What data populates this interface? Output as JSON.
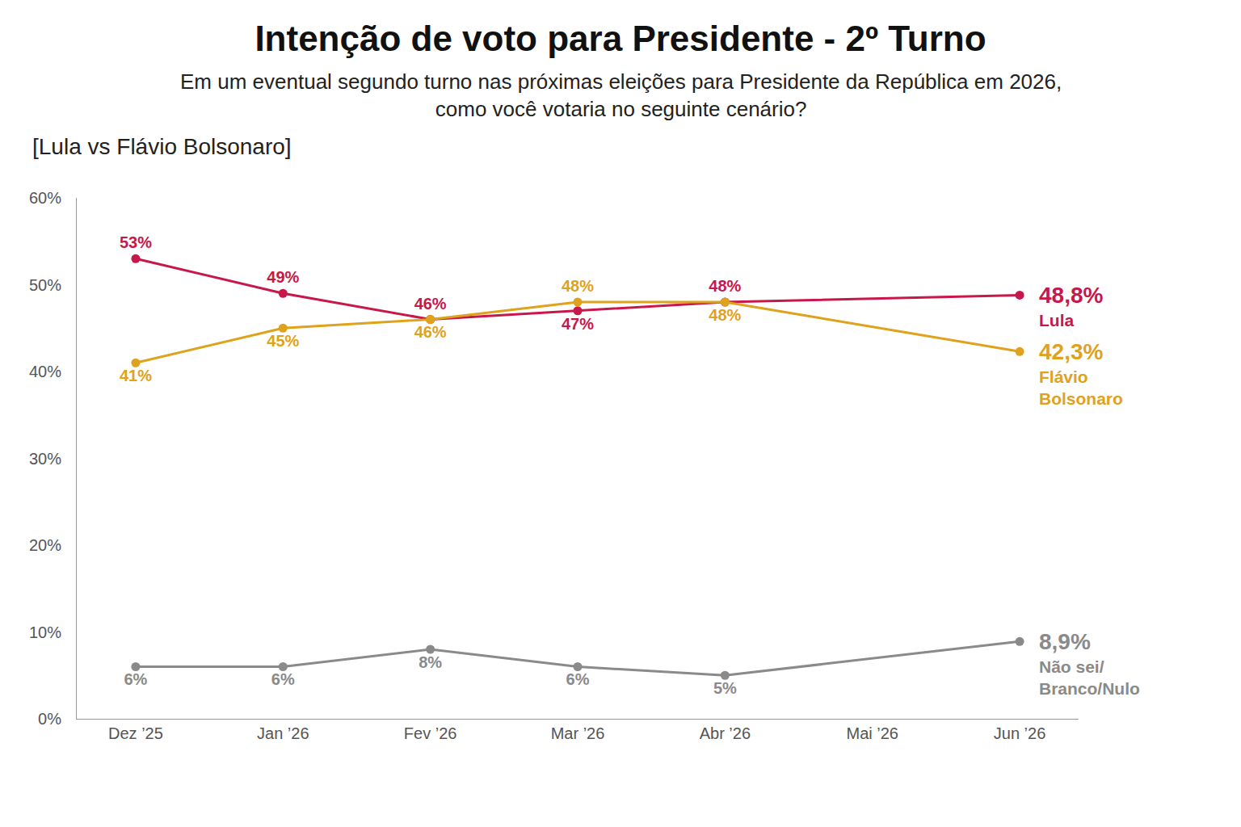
{
  "chart_data": {
    "type": "line",
    "title": "Intenção de voto para Presidente - 2º Turno",
    "subtitle": "Em um eventual segundo turno nas próximas eleições para Presidente da República em 2026, como você votaria no seguinte cenário?",
    "annotations": [
      "[Lula vs Flávio Bolsonaro]"
    ],
    "categories": [
      "Dez ’25",
      "Jan ’26",
      "Fev ’26",
      "Mar ’26",
      "Abr ’26",
      "Mai ’26",
      "Jun ’26"
    ],
    "series": [
      {
        "name": "Lula",
        "color": "#c8174a",
        "values": [
          53,
          49,
          46,
          47,
          48,
          null,
          48.8
        ],
        "value_labels": [
          "53%",
          "49%",
          "46%",
          "47%",
          "48%",
          null,
          "48,8%"
        ]
      },
      {
        "name": "Flávio Bolsonaro",
        "color": "#dfa21c",
        "values": [
          41,
          45,
          46,
          48,
          48,
          null,
          42.3
        ],
        "value_labels": [
          "41%",
          "45%",
          "46%",
          "48%",
          "48%",
          null,
          "42,3%"
        ]
      },
      {
        "name": "Não sei/ Branco/Nulo",
        "color": "#8a8a8a",
        "values": [
          6,
          6,
          8,
          6,
          5,
          null,
          8.9
        ],
        "value_labels": [
          "6%",
          "6%",
          "8%",
          "6%",
          "5%",
          null,
          "8,9%"
        ]
      }
    ],
    "ylim": [
      0,
      60
    ],
    "yticks": [
      {
        "value": 0,
        "label": "0%"
      },
      {
        "value": 10,
        "label": "10%"
      },
      {
        "value": 20,
        "label": "20%"
      },
      {
        "value": 30,
        "label": "30%"
      },
      {
        "value": 40,
        "label": "40%"
      },
      {
        "value": 50,
        "label": "50%"
      },
      {
        "value": 60,
        "label": "60%"
      }
    ],
    "grid": false,
    "data_labels": true,
    "marker": "circle",
    "line_style": "solid"
  }
}
